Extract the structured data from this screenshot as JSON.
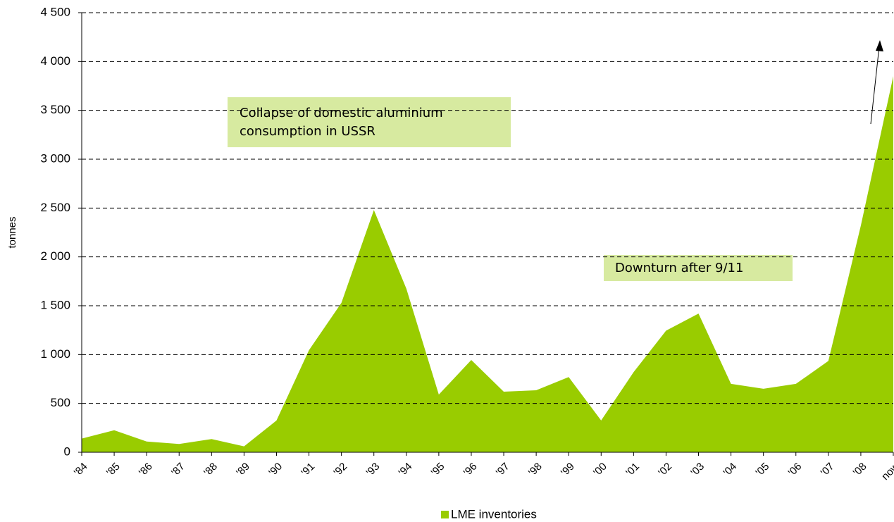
{
  "chart_data": {
    "type": "area",
    "y_label": "tonnes",
    "categories": [
      "'84",
      "'85",
      "'86",
      "'87",
      "'88",
      "'89",
      "'90",
      "'91",
      "'92",
      "'93",
      "'94",
      "'95",
      "'96",
      "'97",
      "'98",
      "'99",
      "'00",
      "'01",
      "'02",
      "'03",
      "'04",
      "'05",
      "'06",
      "'07",
      "'08",
      "now"
    ],
    "series": [
      {
        "name": "LME inventories",
        "color": "#99cc00",
        "values": [
          140,
          225,
          110,
          85,
          135,
          60,
          325,
          1045,
          1530,
          2480,
          1675,
          590,
          945,
          620,
          635,
          770,
          325,
          820,
          1245,
          1420,
          700,
          650,
          700,
          935,
          2320,
          3850
        ]
      }
    ],
    "ylim": [
      0,
      4500
    ],
    "yticks": [
      0,
      500,
      {
        "value": 1000,
        "label": "1 000"
      },
      {
        "value": 1500,
        "label": "1 500"
      },
      {
        "value": 2000,
        "label": "2 000"
      },
      {
        "value": 2500,
        "label": "2 500"
      },
      {
        "value": 3000,
        "label": "3 000"
      },
      {
        "value": 3500,
        "label": "3 500"
      },
      {
        "value": 4000,
        "label": "4 000"
      },
      {
        "value": 4500,
        "label": "4 500"
      }
    ],
    "grid": true,
    "legend": "bottom",
    "annotations": [
      [
        "Collapse of domestic aluminium",
        "consumption in USSR"
      ],
      [
        "Downturn after 9/11"
      ]
    ]
  }
}
